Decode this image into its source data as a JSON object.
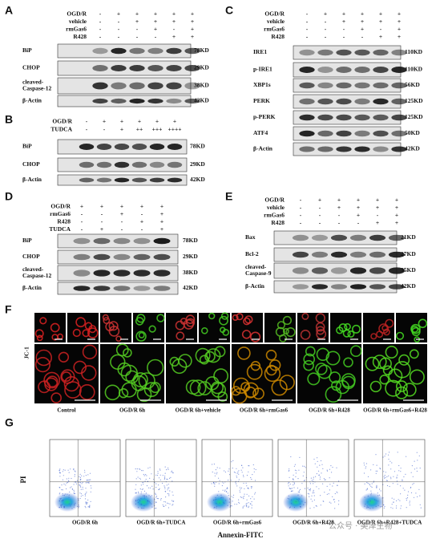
{
  "blot_panels": [
    {
      "letter": "A",
      "conditions": [
        {
          "name": "OGD/R",
          "signs": [
            "-",
            "+",
            "+",
            "+",
            "+",
            "+"
          ]
        },
        {
          "name": "vehicle",
          "signs": [
            "-",
            "-",
            "+",
            "+",
            "+",
            "+"
          ]
        },
        {
          "name": "rmGas6",
          "signs": [
            "-",
            "-",
            "-",
            "+",
            "-",
            "+"
          ]
        },
        {
          "name": "R428",
          "signs": [
            "-",
            "-",
            "-",
            "-",
            "+",
            "+"
          ]
        }
      ],
      "blots": [
        {
          "protein": [
            "BiP"
          ],
          "size": "78KD"
        },
        {
          "protein": [
            "CHOP"
          ],
          "size": "29KD"
        },
        {
          "protein": [
            "cleaved-",
            "Caspase-12"
          ],
          "size": "38KD"
        },
        {
          "protein": [
            "β-Actin"
          ],
          "size": "42KD"
        }
      ]
    },
    {
      "letter": "B",
      "conditions": [
        {
          "name": "OGD/R",
          "signs": [
            "-",
            "+",
            "+",
            "+",
            "+",
            "+"
          ]
        },
        {
          "name": "TUDCA",
          "signs": [
            "-",
            "-",
            "+",
            "++",
            "+++",
            "++++"
          ]
        }
      ],
      "blots": [
        {
          "protein": [
            "BiP"
          ],
          "size": "78KD"
        },
        {
          "protein": [
            "CHOP"
          ],
          "size": "29KD"
        },
        {
          "protein": [
            "β-Actin"
          ],
          "size": "42KD"
        }
      ]
    },
    {
      "letter": "C",
      "conditions": [
        {
          "name": "OGD/R",
          "signs": [
            "-",
            "+",
            "+",
            "+",
            "+",
            "+"
          ]
        },
        {
          "name": "vehicle",
          "signs": [
            "-",
            "-",
            "+",
            "+",
            "+",
            "+"
          ]
        },
        {
          "name": "rmGas6",
          "signs": [
            "-",
            "-",
            "-",
            "+",
            "-",
            "+"
          ]
        },
        {
          "name": "R428",
          "signs": [
            "-",
            "-",
            "-",
            "-",
            "+",
            "+"
          ]
        }
      ],
      "blots": [
        {
          "protein": [
            "IRE1"
          ],
          "size": "110KD"
        },
        {
          "protein": [
            "p-IRE1"
          ],
          "size": "110KD"
        },
        {
          "protein": [
            "XBP1s"
          ],
          "size": "56KD"
        },
        {
          "protein": [
            "PERK"
          ],
          "size": "125KD"
        },
        {
          "protein": [
            "p-PERK"
          ],
          "size": "125KD"
        },
        {
          "protein": [
            "ATF4"
          ],
          "size": "50KD"
        },
        {
          "protein": [
            "β-Actin"
          ],
          "size": "42KD"
        }
      ]
    },
    {
      "letter": "D",
      "conditions": [
        {
          "name": "OGD/R",
          "signs": [
            "+",
            "+",
            "+",
            "+",
            "+"
          ]
        },
        {
          "name": "rmGas6",
          "signs": [
            "-",
            "-",
            "+",
            "-",
            "+"
          ]
        },
        {
          "name": "R428",
          "signs": [
            "-",
            "-",
            "-",
            "+",
            "+"
          ]
        },
        {
          "name": "TUDCA",
          "signs": [
            "-",
            "+",
            "-",
            "-",
            "+"
          ]
        }
      ],
      "blots": [
        {
          "protein": [
            "BiP"
          ],
          "size": "78KD"
        },
        {
          "protein": [
            "CHOP"
          ],
          "size": "29KD"
        },
        {
          "protein": [
            "cleaved-",
            "Caspase-12"
          ],
          "size": "38KD"
        },
        {
          "protein": [
            "β-Actin"
          ],
          "size": "42KD"
        }
      ]
    },
    {
      "letter": "E",
      "conditions": [
        {
          "name": "OGD/R",
          "signs": [
            "-",
            "+",
            "+",
            "+",
            "+",
            "+"
          ]
        },
        {
          "name": "vehicle",
          "signs": [
            "-",
            "-",
            "+",
            "+",
            "+",
            "+"
          ]
        },
        {
          "name": "rmGas6",
          "signs": [
            "-",
            "-",
            "-",
            "+",
            "-",
            "+"
          ]
        },
        {
          "name": "R428",
          "signs": [
            "-",
            "-",
            "-",
            "-",
            "+",
            "+"
          ]
        }
      ],
      "blots": [
        {
          "protein": [
            "Bax"
          ],
          "size": "21KD"
        },
        {
          "protein": [
            "Bcl-2"
          ],
          "size": "27KD"
        },
        {
          "protein": [
            "cleaved-",
            "Caspase-9"
          ],
          "size": "35KD"
        },
        {
          "protein": [
            "β-Actin"
          ],
          "size": "42KD"
        }
      ]
    }
  ],
  "panel_f": {
    "letter": "F",
    "stain": "JC-1",
    "captions": [
      "Control",
      "OGD/R 6h",
      "OGD/R 6h+vehicle",
      "OGD/R 6h+rmGas6",
      "OGD/R 6h+R428",
      "OGD/R 6h+rmGas6+R428"
    ]
  },
  "panel_g": {
    "letter": "G",
    "y_label": "PI",
    "x_label": "Annexin-FITC",
    "captions": [
      "OGD/R 6h",
      "OGD/R 6h+TUDCA",
      "OGD/R 6h+rmGas6",
      "OGD/R 6h+R428",
      "OGD/R 6h+R428+TUDCA"
    ]
  },
  "watermark": "公众号 · 美泽生物"
}
